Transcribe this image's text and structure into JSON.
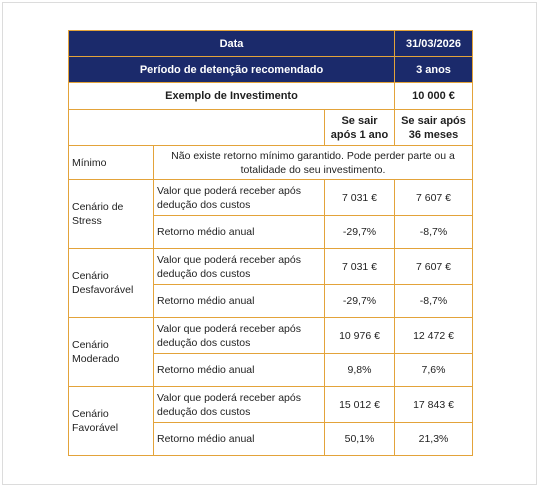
{
  "header": {
    "date_label": "Data",
    "date_value": "31/03/2026",
    "holding_label": "Período de detenção recomendado",
    "holding_value": "3 anos"
  },
  "investment": {
    "label": "Exemplo de Investimento",
    "value": "10 000 €"
  },
  "columns": {
    "col1": "Se sair após 1 ano",
    "col2": "Se sair após 36 meses"
  },
  "minimum": {
    "label": "Mínimo",
    "text": "Não existe retorno mínimo garantido. Pode perder parte ou a totalidade do seu investimento."
  },
  "scenarios": [
    {
      "name": "Cenário de Stress",
      "value_label": "Valor que poderá receber após dedução dos custos",
      "value_1y": "7 031 €",
      "value_36m": "7 607 €",
      "return_label": "Retorno médio anual",
      "return_1y": "-29,7%",
      "return_36m": "-8,7%"
    },
    {
      "name": "Cenário Desfavorável",
      "value_label": "Valor que poderá receber após dedução dos custos",
      "value_1y": "7 031 €",
      "value_36m": "7 607 €",
      "return_label": "Retorno médio anual",
      "return_1y": "-29,7%",
      "return_36m": "-8,7%"
    },
    {
      "name": "Cenário Moderado",
      "value_label": "Valor que poderá receber após dedução dos custos",
      "value_1y": "10 976 €",
      "value_36m": "12 472 €",
      "return_label": "Retorno médio anual",
      "return_1y": "9,8%",
      "return_36m": "7,6%"
    },
    {
      "name": "Cenário Favorável",
      "value_label": "Valor que poderá receber após dedução dos custos",
      "value_1y": "15 012 €",
      "value_36m": "17 843 €",
      "return_label": "Retorno médio anual",
      "return_1y": "50,1%",
      "return_36m": "21,3%"
    }
  ],
  "colors": {
    "header_bg": "#1b2a6b",
    "border": "#e3a33a"
  }
}
